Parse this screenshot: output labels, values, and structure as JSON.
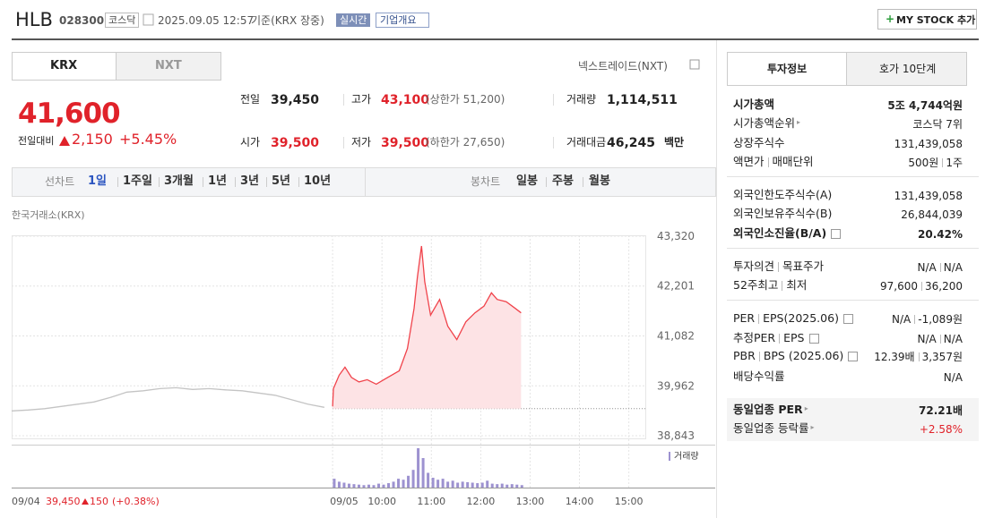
{
  "header": {
    "name": "HLB",
    "code": "028300",
    "market": "코스닥",
    "time": "2025.09.05 12:57",
    "basis": "기준(KRX 장중)",
    "realtime": "실시간",
    "overview": "기업개요",
    "my_stock": "MY STOCK 추가"
  },
  "tabs": [
    "KRX",
    "NXT"
  ],
  "nxt_link": "넥스트레이드(NXT)",
  "price": {
    "current": "41,600",
    "change_label": "전일대비",
    "change": "2,150",
    "rate": "+5.45%"
  },
  "stats": [
    {
      "label": "전일",
      "value": "39,450"
    },
    {
      "label": "고가",
      "value": "43,100",
      "note": "(상한가 51,200)"
    },
    {
      "label": "거래량",
      "value": "1,114,511"
    },
    {
      "label": "시가",
      "value": "39,500"
    },
    {
      "label": "저가",
      "value": "39,500",
      "note": "(하한가 27,650)"
    },
    {
      "label": "거래대금",
      "value": "46,245",
      "unit": "백만"
    }
  ],
  "periods": {
    "line_label": "선차트",
    "line": [
      "1일",
      "1주일",
      "3개월",
      "1년",
      "3년",
      "5년",
      "10년"
    ],
    "candle_label": "봉차트",
    "candle": [
      "일봉",
      "주봉",
      "월봉"
    ]
  },
  "chart_data": [
    {
      "type": "line",
      "subtitle": "한국거래소(KRX)",
      "grid": true,
      "baseline": 39450,
      "xlim": [
        0,
        770
      ],
      "xticks": [
        {
          "value": 0,
          "label": "09/04"
        },
        {
          "value": 390,
          "label": "09/05"
        },
        {
          "value": 450,
          "label": "10:00"
        },
        {
          "value": 510,
          "label": "11:00"
        },
        {
          "value": 570,
          "label": "12:00"
        },
        {
          "value": 630,
          "label": "13:00"
        },
        {
          "value": 690,
          "label": "14:00"
        },
        {
          "value": 750,
          "label": "15:00"
        }
      ],
      "ylim": [
        38843,
        43320
      ],
      "yticks": [
        {
          "value": 43320,
          "label": "43,320"
        },
        {
          "value": 42201,
          "label": "42,201"
        },
        {
          "value": 41082,
          "label": "41,082"
        },
        {
          "value": 39962,
          "label": "39,962"
        },
        {
          "value": 38843,
          "label": "38,843"
        }
      ],
      "series": [
        {
          "color": "#c4c4c4",
          "x": [
            0,
            20,
            40,
            60,
            80,
            100,
            120,
            140,
            160,
            180,
            200,
            220,
            240,
            260,
            280,
            300,
            320,
            340,
            360,
            380
          ],
          "values": [
            39400,
            39420,
            39450,
            39500,
            39550,
            39600,
            39700,
            39820,
            39850,
            39900,
            39920,
            39880,
            39900,
            39870,
            39850,
            39800,
            39750,
            39650,
            39550,
            39480
          ]
        },
        {
          "color": "#f0434b",
          "fill": "#fde3e5",
          "x": [
            390,
            391,
            398,
            405,
            413,
            422,
            432,
            443,
            454,
            471,
            481,
            489,
            493,
            498,
            502,
            509,
            520,
            530,
            541,
            552,
            563,
            574,
            583,
            590,
            601,
            612,
            619
          ],
          "values": [
            39500,
            39900,
            40200,
            40380,
            40150,
            40050,
            40100,
            40000,
            40120,
            40300,
            40800,
            41700,
            42400,
            43100,
            42300,
            41550,
            41900,
            41300,
            41000,
            41400,
            41600,
            41750,
            42050,
            41900,
            41850,
            41700,
            41600
          ]
        }
      ],
      "prev_close": "39,450",
      "prev_change": "150",
      "prev_change_rate": "(+0.38%)"
    },
    {
      "type": "bar",
      "xlim": [
        0,
        770
      ],
      "series": [
        {
          "name": "거래량",
          "color": "#9d92d0",
          "x": [
            392,
            398,
            404,
            410,
            416,
            422,
            428,
            434,
            440,
            446,
            452,
            458,
            464,
            470,
            476,
            482,
            488,
            494,
            500,
            506,
            512,
            518,
            524,
            530,
            536,
            542,
            548,
            554,
            560,
            566,
            572,
            578,
            584,
            590,
            596,
            602,
            608,
            614,
            620
          ],
          "values": [
            9000,
            6000,
            5000,
            4000,
            3500,
            3000,
            2500,
            3000,
            2500,
            4000,
            3000,
            4500,
            6000,
            9000,
            8000,
            12000,
            18000,
            40000,
            30000,
            15000,
            10000,
            8000,
            9000,
            6000,
            7000,
            5000,
            6000,
            5500,
            5000,
            4500,
            5000,
            7000,
            4000,
            3500,
            4000,
            3000,
            3500,
            3000,
            2500
          ]
        }
      ]
    }
  ],
  "info_tabs": [
    "투자정보",
    "호가 10단계"
  ],
  "info": [
    [
      {
        "labels": [
          "시가총액"
        ],
        "values": [
          "5조 4,744억원"
        ]
      },
      {
        "labels": [
          "시가총액순위"
        ],
        "values": [
          "코스닥 7위"
        ]
      },
      {
        "labels": [
          "상장주식수"
        ],
        "values": [
          "131,439,058"
        ]
      },
      {
        "labels": [
          "액면가",
          "매매단위"
        ],
        "values": [
          "500원",
          "1주"
        ]
      }
    ],
    [
      {
        "labels": [
          "외국인한도주식수(A)"
        ],
        "values": [
          "131,439,058"
        ]
      },
      {
        "labels": [
          "외국인보유주식수(B)"
        ],
        "values": [
          "26,844,039"
        ]
      },
      {
        "labels": [
          "외국인소진율(B/A)"
        ],
        "values": [
          "20.42%"
        ]
      }
    ],
    [
      {
        "labels": [
          "투자의견",
          "목표주가"
        ],
        "values": [
          "N/A",
          "N/A"
        ]
      },
      {
        "labels": [
          "52주최고",
          "최저"
        ],
        "values": [
          "97,600",
          "36,200"
        ]
      }
    ],
    [
      {
        "labels": [
          "PER",
          "EPS(2025.06)"
        ],
        "values": [
          "N/A",
          "-1,089원"
        ]
      },
      {
        "labels": [
          "추정PER",
          "EPS"
        ],
        "values": [
          "N/A",
          "N/A"
        ]
      },
      {
        "labels": [
          "PBR",
          "BPS (2025.06)"
        ],
        "values": [
          "12.39배",
          "3,357원"
        ]
      },
      {
        "labels": [
          "배당수익률"
        ],
        "values": [
          "N/A"
        ]
      }
    ],
    [
      {
        "labels": [
          "동일업종 PER"
        ],
        "values": [
          "72.21배"
        ]
      },
      {
        "labels": [
          "동일업종 등락률"
        ],
        "values": [
          "+2.58%"
        ]
      }
    ]
  ]
}
